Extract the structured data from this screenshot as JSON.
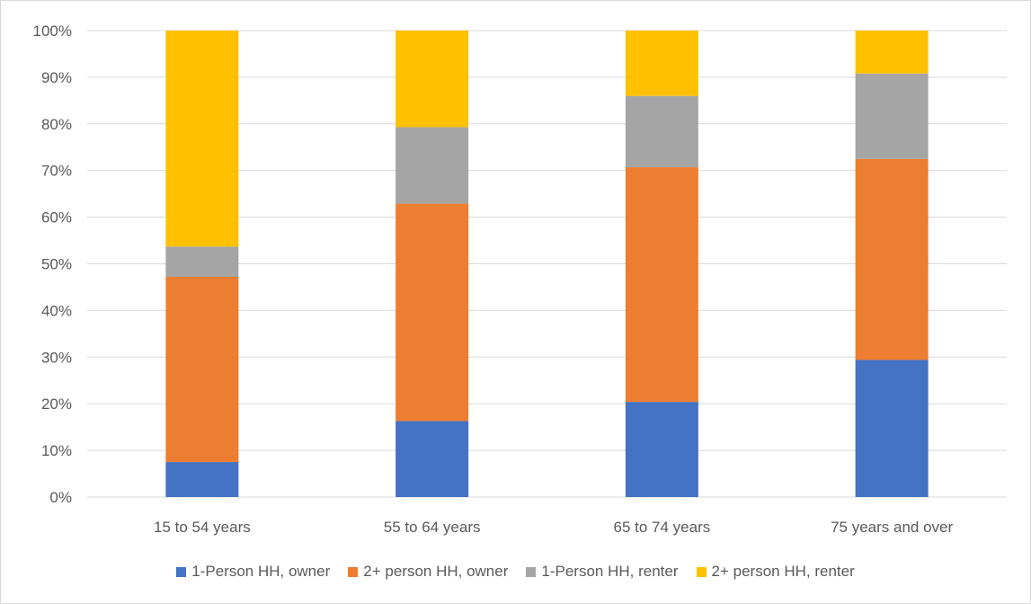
{
  "chart_data": {
    "type": "bar",
    "stacked": true,
    "percent": true,
    "title": "",
    "xlabel": "",
    "ylabel": "",
    "ylim": [
      0,
      100
    ],
    "yticks": [
      "0%",
      "10%",
      "20%",
      "30%",
      "40%",
      "50%",
      "60%",
      "70%",
      "80%",
      "90%",
      "100%"
    ],
    "grid": true,
    "legend_position": "bottom",
    "categories": [
      "15 to 54 years",
      "55 to 64 years",
      "65 to 74 years",
      "75 years and over"
    ],
    "series": [
      {
        "name": "1-Person HH, owner",
        "color": "#4472c4",
        "values": [
          7.5,
          16.3,
          20.4,
          29.4
        ]
      },
      {
        "name": "2+ person HH, owner",
        "color": "#ed7d31",
        "values": [
          39.7,
          46.6,
          50.3,
          43.1
        ]
      },
      {
        "name": "1-Person HH, renter",
        "color": "#a5a5a5",
        "values": [
          6.5,
          16.4,
          15.3,
          18.3
        ]
      },
      {
        "name": "2+ person HH, renter",
        "color": "#ffc000",
        "values": [
          46.3,
          20.7,
          14.0,
          9.2
        ]
      }
    ]
  }
}
